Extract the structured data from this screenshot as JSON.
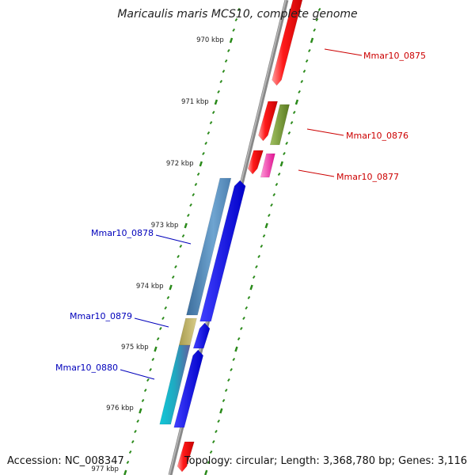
{
  "title": "Maricaulis maris MCS10, complete genome",
  "footer": {
    "accession": "Accession: NC_008347",
    "topology": "Topology: circular; Length: 3,368,780 bp; Genes: 3,116"
  },
  "colors": {
    "backbone": "#888888",
    "tick": "#2a8a1a",
    "forward_label": "#cc0000",
    "reverse_label": "#0000bb"
  },
  "kbp_labels": [
    "970 kbp",
    "971 kbp",
    "972 kbp",
    "973 kbp",
    "974 kbp",
    "975 kbp",
    "976 kbp",
    "977 kbp"
  ],
  "gene_labels": [
    {
      "text": "Mmar10_0875",
      "strand": "forward"
    },
    {
      "text": "Mmar10_0876",
      "strand": "forward"
    },
    {
      "text": "Mmar10_0877",
      "strand": "forward"
    },
    {
      "text": "Mmar10_0878",
      "strand": "reverse"
    },
    {
      "text": "Mmar10_0879",
      "strand": "reverse"
    },
    {
      "text": "Mmar10_0880",
      "strand": "reverse"
    }
  ]
}
